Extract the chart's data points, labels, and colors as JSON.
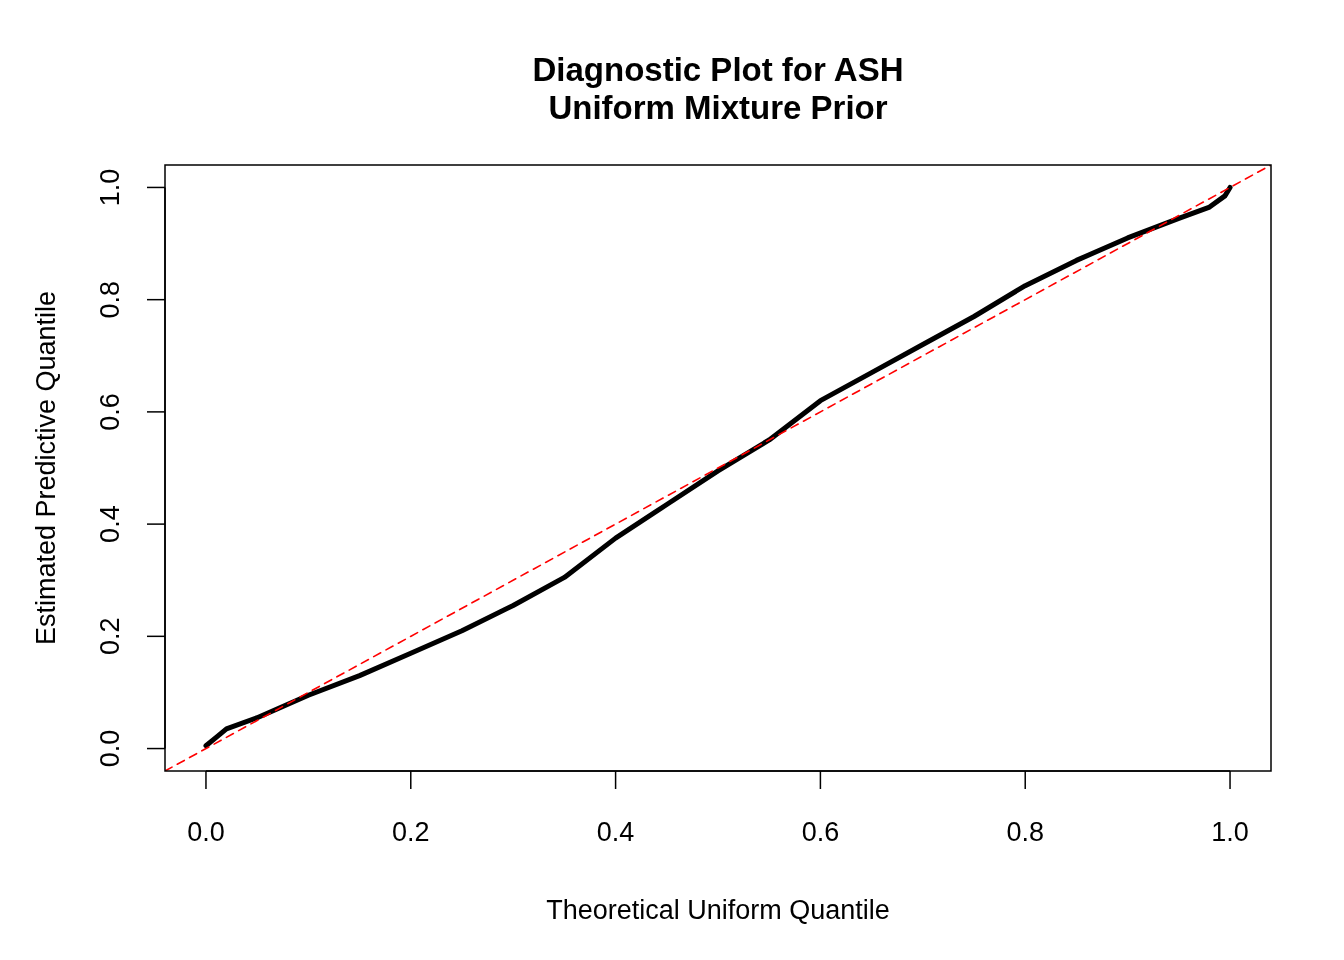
{
  "chart_data": {
    "type": "line",
    "title": "Diagnostic Plot for ASH\nUniform Mixture Prior",
    "xlabel": "Theoretical Uniform Quantile",
    "ylabel": "Estimated Predictive Quantile",
    "xlim": [
      -0.04,
      1.04
    ],
    "ylim": [
      -0.04,
      1.04
    ],
    "xticks": [
      {
        "value": 0,
        "label": "0.0"
      },
      {
        "value": 0.2,
        "label": "0.2"
      },
      {
        "value": 0.4,
        "label": "0.4"
      },
      {
        "value": 0.6,
        "label": "0.6"
      },
      {
        "value": 0.8,
        "label": "0.8"
      },
      {
        "value": 1,
        "label": "1.0"
      }
    ],
    "yticks": [
      {
        "value": 0,
        "label": "0.0"
      },
      {
        "value": 0.2,
        "label": "0.2"
      },
      {
        "value": 0.4,
        "label": "0.4"
      },
      {
        "value": 0.6,
        "label": "0.6"
      },
      {
        "value": 0.8,
        "label": "0.8"
      },
      {
        "value": 1,
        "label": "1.0"
      }
    ],
    "grid": false,
    "marker": "none",
    "series": [
      {
        "color": "#000000",
        "line_style": "solid",
        "x": [
          0,
          0.01,
          0.02,
          0.05,
          0.1,
          0.15,
          0.2,
          0.25,
          0.3,
          0.35,
          0.4,
          0.45,
          0.5,
          0.55,
          0.6,
          0.65,
          0.7,
          0.75,
          0.8,
          0.85,
          0.9,
          0.95,
          0.98,
          0.995,
          1
        ],
        "values": [
          0.005,
          0.02,
          0.035,
          0.055,
          0.095,
          0.13,
          0.17,
          0.21,
          0.255,
          0.305,
          0.375,
          0.435,
          0.495,
          0.55,
          0.62,
          0.67,
          0.72,
          0.77,
          0.825,
          0.87,
          0.91,
          0.945,
          0.965,
          0.985,
          1
        ]
      },
      {
        "color": "#ff0000",
        "line_style": "dashed",
        "x": [
          -0.04,
          1.04
        ],
        "values": [
          -0.04,
          1.04
        ]
      }
    ]
  }
}
